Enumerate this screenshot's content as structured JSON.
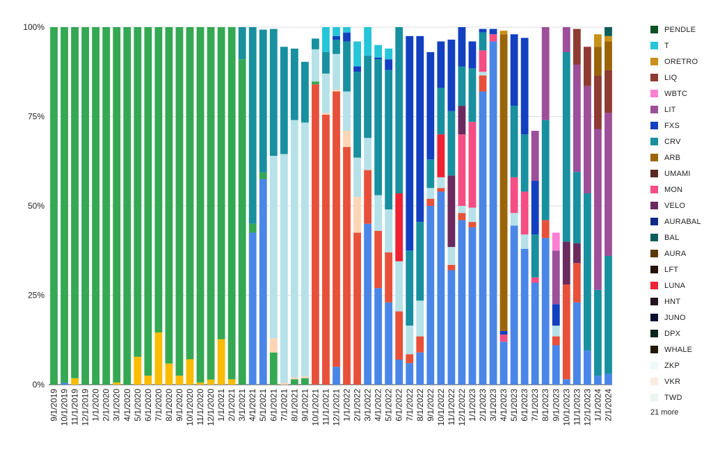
{
  "chart_data": {
    "type": "bar",
    "stacked": true,
    "normalized": true,
    "title": "",
    "xlabel": "",
    "ylabel": "",
    "ylim": [
      0,
      100
    ],
    "y_ticks": [
      "0%",
      "25%",
      "50%",
      "75%",
      "100%"
    ],
    "grid": true,
    "legend_position": "right",
    "legend_more": "21 more",
    "categories": [
      "9/1/2019",
      "10/1/2019",
      "11/1/2019",
      "12/1/2019",
      "1/1/2020",
      "2/1/2020",
      "3/1/2020",
      "4/1/2020",
      "5/1/2020",
      "6/1/2020",
      "7/1/2020",
      "8/1/2020",
      "9/1/2020",
      "10/1/2020",
      "11/1/2020",
      "12/1/2020",
      "1/1/2021",
      "2/1/2021",
      "3/1/2021",
      "4/1/2021",
      "5/1/2021",
      "6/1/2021",
      "7/1/2021",
      "8/1/2021",
      "9/1/2021",
      "10/1/2021",
      "11/1/2021",
      "12/1/2021",
      "1/1/2022",
      "2/1/2022",
      "3/1/2022",
      "4/1/2022",
      "5/1/2022",
      "6/1/2022",
      "7/1/2022",
      "8/1/2022",
      "9/1/2022",
      "10/1/2022",
      "11/1/2022",
      "12/1/2022",
      "1/1/2023",
      "2/1/2023",
      "3/1/2023",
      "4/1/2023",
      "5/1/2023",
      "6/1/2023",
      "7/1/2023",
      "8/1/2023",
      "9/1/2023",
      "10/1/2023",
      "11/1/2023",
      "12/1/2023",
      "1/1/2024",
      "2/1/2024",
      "3/1/2024"
    ],
    "legend": [
      {
        "name": "PENDLE",
        "color": "#0b5323"
      },
      {
        "name": "T",
        "color": "#26c6da"
      },
      {
        "name": "ORETRO",
        "color": "#c9901a"
      },
      {
        "name": "LIQ",
        "color": "#8e3b32"
      },
      {
        "name": "WBTC",
        "color": "#ff7fd4"
      },
      {
        "name": "LIT",
        "color": "#9d4f9a"
      },
      {
        "name": "FXS",
        "color": "#1240c0"
      },
      {
        "name": "CRV",
        "color": "#1890a0"
      },
      {
        "name": "ARB",
        "color": "#9a6408"
      },
      {
        "name": "UMAMI",
        "color": "#5a2a22"
      },
      {
        "name": "MON",
        "color": "#f54d84"
      },
      {
        "name": "VELO",
        "color": "#6a2a5e"
      },
      {
        "name": "AURABAL",
        "color": "#0d2a86"
      },
      {
        "name": "BAL",
        "color": "#0f5e5c"
      },
      {
        "name": "AURA",
        "color": "#5b3a08"
      },
      {
        "name": "LFT",
        "color": "#26100a"
      },
      {
        "name": "LUNA",
        "color": "#ee2233"
      },
      {
        "name": "HNT",
        "color": "#231020"
      },
      {
        "name": "JUNO",
        "color": "#0c1030"
      },
      {
        "name": "DPX",
        "color": "#0a2420"
      },
      {
        "name": "WHALE",
        "color": "#221804"
      },
      {
        "name": "ZKP",
        "color": "#eef9fb"
      },
      {
        "name": "VKR",
        "color": "#fdeae2"
      },
      {
        "name": "TWD",
        "color": "#eaf5ee"
      }
    ],
    "series": [
      {
        "color": "#4a86e8",
        "values": [
          0,
          0.5,
          0,
          0,
          0,
          0,
          0,
          0,
          0,
          0,
          0,
          0,
          0,
          0,
          0,
          0,
          0,
          0,
          0,
          42.5,
          57.5,
          0,
          0,
          0,
          0,
          0,
          0,
          5,
          0,
          0,
          45,
          27,
          23,
          7,
          6,
          9,
          50,
          54,
          32,
          46,
          44,
          82,
          96,
          12,
          44.5,
          38,
          28.5,
          41,
          11,
          1.5,
          23,
          9.5,
          2.5,
          3,
          2
        ]
      },
      {
        "color": "#fbbc04",
        "values": [
          0,
          0,
          1.8,
          0,
          0,
          0,
          0.6,
          0,
          7.8,
          2.5,
          14.6,
          5.9,
          2.5,
          7.1,
          0.6,
          1.4,
          12.7,
          1.5,
          0,
          0,
          0,
          0,
          0,
          0,
          0,
          0,
          0,
          0,
          0,
          0,
          0,
          0,
          0,
          0,
          0,
          0,
          0,
          0,
          0,
          0,
          0,
          0,
          0,
          0,
          0,
          0,
          0,
          0,
          0,
          0,
          0,
          0,
          0,
          0,
          0
        ]
      },
      {
        "color": "#e8503a",
        "values": [
          0,
          0,
          0,
          0,
          0,
          0,
          0,
          0,
          0,
          0,
          0,
          0,
          0,
          0,
          0,
          0,
          0,
          0,
          0,
          0,
          0,
          0,
          0,
          0,
          0,
          84,
          75.5,
          77,
          66.5,
          42.5,
          15,
          16,
          14,
          13.5,
          2.5,
          4.5,
          2,
          1,
          1.5,
          2,
          1.5,
          4.5,
          0,
          0,
          0,
          0,
          0,
          5,
          2.5,
          26.5,
          11,
          0,
          0,
          0,
          0
        ]
      },
      {
        "color": "#34a853",
        "values": [
          100,
          99.5,
          98.2,
          100,
          100,
          100,
          99.4,
          100,
          92.2,
          97.5,
          85.4,
          94.1,
          97.5,
          92.9,
          99.4,
          98.6,
          87.3,
          98.5,
          91,
          2.5,
          1.8,
          9,
          0,
          1.5,
          1.8,
          0.8,
          0,
          0,
          0,
          0,
          0,
          0,
          0,
          0,
          0,
          0,
          0,
          0,
          0,
          0,
          0,
          0,
          0,
          0,
          0,
          0,
          0,
          0,
          0,
          0,
          0,
          0,
          0,
          0,
          0
        ]
      },
      {
        "color": "#fcd5b5",
        "values": [
          0,
          0,
          0,
          0,
          0,
          0,
          0,
          0,
          0,
          0,
          0,
          0,
          0,
          0,
          0,
          0,
          0,
          0,
          0,
          0,
          0,
          4,
          0.5,
          0.5,
          0.5,
          0,
          0.5,
          0.5,
          4.5,
          10,
          0,
          0,
          0,
          0,
          0,
          0,
          0,
          0,
          0,
          0,
          0,
          0,
          0,
          0,
          0,
          0,
          0,
          0,
          0,
          0,
          0,
          0,
          0,
          0,
          0
        ]
      },
      {
        "color": "#b6e1e8",
        "values": [
          0,
          0,
          0,
          0,
          0,
          0,
          0,
          0,
          0,
          0,
          0,
          0,
          0,
          0,
          0,
          0,
          0,
          0,
          0,
          0,
          0,
          51,
          64,
          72,
          71,
          9,
          11,
          10,
          11,
          11,
          9,
          10,
          12,
          14,
          8,
          10,
          3,
          3,
          5,
          2,
          4,
          1,
          0,
          0,
          3.5,
          4,
          0,
          0,
          3,
          0,
          0,
          0,
          0,
          0,
          0
        ]
      },
      {
        "color": "#f54d84",
        "values": [
          0,
          0,
          0,
          0,
          0,
          0,
          0,
          0,
          0,
          0,
          0,
          0,
          0,
          0,
          0,
          0,
          0,
          0,
          0,
          0,
          0,
          0,
          0,
          0,
          0,
          0,
          0,
          0,
          0,
          0,
          0,
          0,
          0,
          0,
          0,
          0,
          0,
          0,
          0,
          20,
          24,
          6,
          2,
          2,
          10,
          12,
          1.5,
          0,
          0,
          0,
          0,
          0,
          0,
          0,
          0
        ]
      },
      {
        "color": "#ee2233",
        "values": [
          0,
          0,
          0,
          0,
          0,
          0,
          0,
          0,
          0,
          0,
          0,
          0,
          0,
          0,
          0,
          0,
          0,
          0,
          0,
          0,
          0,
          0,
          0,
          0,
          0,
          0,
          0,
          0,
          0,
          0,
          0,
          0,
          0,
          19,
          0,
          0,
          0,
          12,
          0,
          0,
          0,
          0,
          0,
          0,
          0,
          0,
          0,
          0,
          0,
          0,
          0,
          0,
          0,
          0,
          0
        ]
      },
      {
        "color": "#6a2a5e",
        "values": [
          0,
          0,
          0,
          0,
          0,
          0,
          0,
          0,
          0,
          0,
          0,
          0,
          0,
          0,
          0,
          0,
          0,
          0,
          0,
          0,
          0,
          0,
          0,
          0,
          0,
          0,
          0,
          0,
          0,
          0,
          0,
          0,
          0,
          0,
          0,
          0,
          0,
          0,
          20,
          8,
          0,
          0,
          0,
          0,
          0,
          0,
          0,
          0,
          0,
          12,
          5.5,
          0,
          0,
          0,
          0
        ]
      },
      {
        "color": "#1890a0",
        "values": [
          0,
          0,
          0,
          0,
          0,
          0,
          0,
          0,
          0,
          0,
          0,
          0,
          0,
          0,
          0,
          0,
          0,
          0,
          9,
          55,
          40,
          35.5,
          30,
          20,
          17,
          3,
          6,
          4,
          14,
          24,
          23,
          38,
          39,
          57,
          21,
          22,
          8,
          13,
          18,
          11,
          15,
          5,
          0,
          0,
          20,
          16,
          12,
          28,
          0,
          53,
          20,
          44,
          24,
          33,
          6
        ]
      },
      {
        "color": "#1240c0",
        "values": [
          0,
          0,
          0,
          0,
          0,
          0,
          0,
          0,
          0,
          0,
          0,
          0,
          0,
          0,
          0,
          0,
          0,
          0,
          0,
          0,
          0,
          0,
          0,
          0,
          0,
          0,
          0,
          1,
          2.5,
          1.5,
          0,
          0.5,
          3,
          4,
          60,
          52,
          30,
          13,
          20,
          17,
          7.5,
          1,
          1.5,
          1,
          20,
          27,
          15,
          0,
          6,
          0,
          0,
          0,
          0,
          0,
          0
        ]
      },
      {
        "color": "#26c6da",
        "values": [
          0,
          0,
          0,
          0,
          0,
          0,
          0,
          0,
          0,
          0,
          0,
          0,
          0,
          0,
          0,
          0,
          0,
          0,
          0,
          0,
          0,
          0,
          0,
          0,
          0,
          0,
          7,
          3,
          4,
          7,
          27,
          3.5,
          3,
          0,
          0,
          0,
          0,
          0,
          0,
          0,
          0,
          0,
          0,
          0,
          0,
          0,
          0,
          0,
          0,
          0,
          0,
          0,
          0,
          0,
          4
        ]
      },
      {
        "color": "#9d4f9a",
        "values": [
          0,
          0,
          0,
          0,
          0,
          0,
          0,
          0,
          0,
          0,
          0,
          0,
          0,
          0,
          0,
          0,
          0,
          0,
          0,
          0,
          0,
          0,
          0,
          0,
          0,
          0,
          0,
          0,
          0,
          0,
          0,
          0,
          0,
          0,
          0,
          0,
          0,
          0,
          0,
          0,
          0,
          0,
          0,
          0,
          0,
          0,
          14,
          42,
          15,
          15,
          30,
          30,
          45,
          40,
          19
        ]
      },
      {
        "color": "#8e3b32",
        "values": [
          0,
          0,
          0,
          0,
          0,
          0,
          0,
          0,
          0,
          0,
          0,
          0,
          0,
          0,
          0,
          0,
          0,
          0,
          0,
          0,
          0,
          0,
          0,
          0,
          0,
          0,
          0,
          0,
          0,
          0,
          0,
          0,
          0,
          0,
          0,
          0,
          0,
          0,
          0,
          0,
          0,
          0,
          0,
          0,
          0,
          0,
          0,
          0,
          0,
          5,
          10,
          11,
          15,
          12,
          7
        ]
      },
      {
        "color": "#ff7fd4",
        "values": [
          0,
          0,
          0,
          0,
          0,
          0,
          0,
          0,
          0,
          0,
          0,
          0,
          0,
          0,
          0,
          0,
          0,
          0,
          0,
          0,
          0,
          0,
          0,
          0,
          0,
          0,
          0,
          0,
          0,
          0,
          0,
          0,
          0,
          0,
          0,
          0,
          0,
          0,
          0,
          0,
          0,
          0,
          0,
          0,
          0,
          0,
          0,
          10,
          5,
          0,
          0,
          0,
          0,
          0,
          0
        ]
      },
      {
        "color": "#9a6408",
        "values": [
          0,
          0,
          0,
          0,
          0,
          0,
          0,
          0,
          0,
          0,
          0,
          0,
          0,
          0,
          0,
          0,
          0,
          0,
          0,
          0,
          0,
          0,
          0,
          0,
          0,
          0,
          0,
          0,
          0,
          0,
          0,
          0,
          0,
          0,
          0,
          0,
          0,
          0,
          0,
          0,
          0,
          0,
          0,
          83,
          0,
          0,
          0,
          0,
          0,
          0,
          0,
          0,
          8,
          8,
          54
        ]
      },
      {
        "color": "#c9901a",
        "values": [
          0,
          0,
          0,
          0,
          0,
          0,
          0,
          0,
          0,
          0,
          0,
          0,
          0,
          0,
          0,
          0,
          0,
          0,
          0,
          0,
          0,
          0,
          0,
          0,
          0,
          0,
          0,
          0,
          0,
          0,
          0,
          0,
          0,
          0,
          0,
          0,
          0,
          0,
          0,
          0,
          0,
          0,
          0,
          1,
          0,
          0,
          0,
          0,
          0,
          0,
          0,
          0,
          3.5,
          1.5,
          0
        ]
      },
      {
        "color": "#0f5e5c",
        "values": [
          0,
          0,
          0,
          0,
          0,
          0,
          0,
          0,
          0,
          0,
          0,
          0,
          0,
          0,
          0,
          0,
          0,
          0,
          0,
          0,
          0,
          0,
          0,
          0,
          0,
          0,
          0,
          0,
          0,
          0,
          0,
          0,
          0,
          0,
          0,
          0,
          0,
          0,
          0,
          0,
          0,
          0,
          0,
          0,
          0,
          0,
          0,
          0,
          0,
          0,
          0,
          0,
          0,
          3,
          4
        ]
      },
      {
        "color": "#231020",
        "values": [
          0,
          0,
          0,
          0,
          0,
          0,
          0,
          0,
          0,
          0,
          0,
          0,
          0,
          0,
          0,
          0,
          0,
          0,
          0,
          0,
          0,
          0,
          0,
          0,
          0,
          0,
          0,
          0,
          0,
          0,
          0,
          0,
          0,
          0,
          0,
          0,
          0,
          0,
          0,
          0,
          0,
          0,
          0,
          0,
          0,
          0,
          0,
          0,
          0,
          0,
          0,
          0,
          0,
          0,
          0
        ]
      },
      {
        "color": "#0b5323",
        "values": [
          0,
          0,
          0,
          0,
          0,
          0,
          0,
          0,
          0,
          0,
          0,
          0,
          0,
          0,
          0,
          0,
          0,
          0,
          0,
          0,
          0,
          0,
          0,
          0,
          0,
          0,
          0,
          0,
          0,
          0,
          0,
          0,
          0,
          0,
          0,
          0,
          0,
          0,
          0,
          0,
          0,
          0,
          0,
          0,
          0,
          0,
          0,
          0,
          0,
          0,
          0,
          0,
          0,
          0,
          1
        ]
      }
    ]
  }
}
